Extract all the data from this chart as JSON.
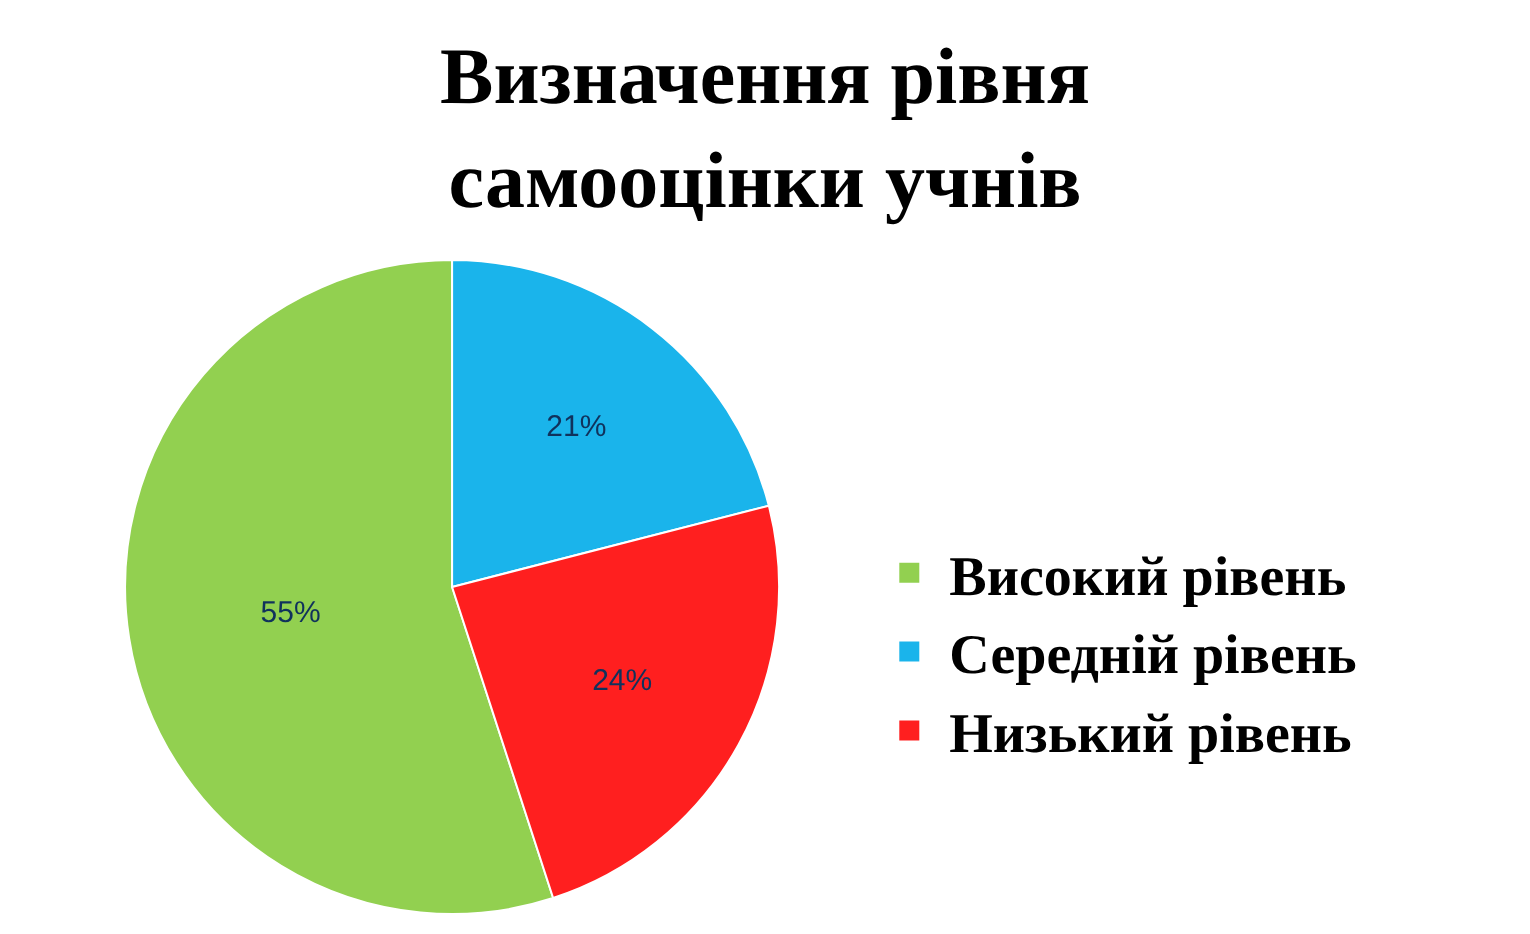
{
  "chart_data": {
    "type": "pie",
    "title": "Визначення рівня\nсамооцінки учнів",
    "categories": [
      "Високий рівень",
      "Середній рівень",
      "Низький рівень"
    ],
    "values": [
      55,
      21,
      24
    ],
    "colors": [
      "#92d050",
      "#1ab4eb",
      "#ff1f1f"
    ],
    "value_labels": [
      "55%",
      "21%",
      "24%"
    ],
    "legend": "right"
  }
}
